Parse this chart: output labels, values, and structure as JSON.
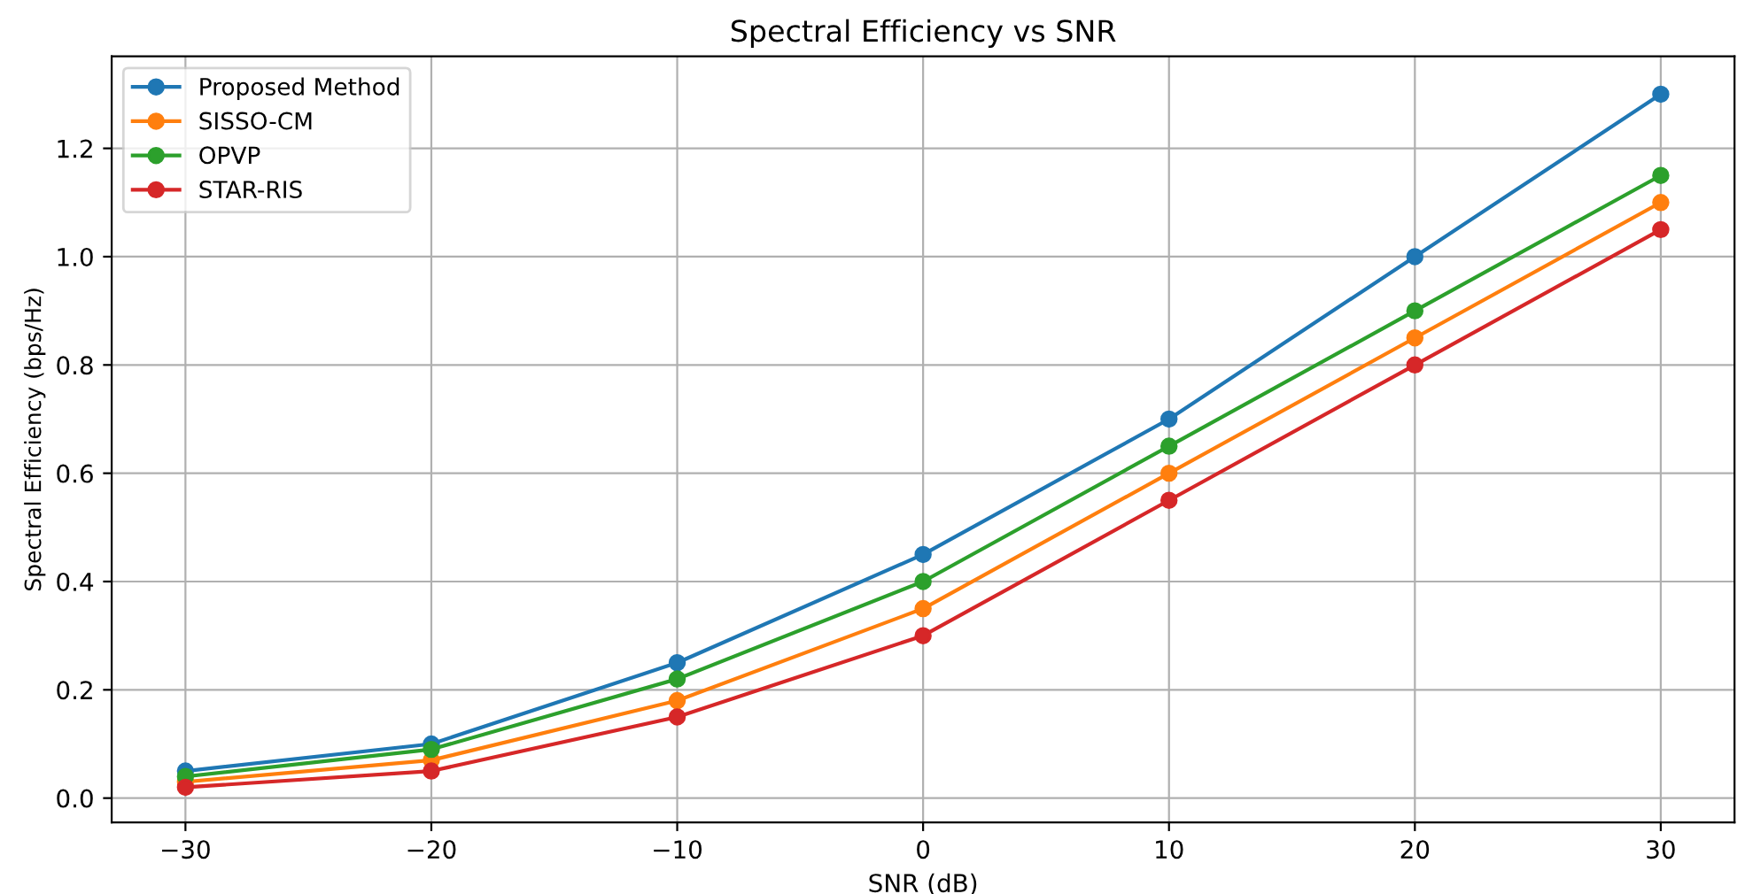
{
  "chart_data": {
    "type": "line",
    "title": "Spectral Efficiency vs SNR",
    "xlabel": "SNR (dB)",
    "ylabel": "Spectral Efficiency (bps/Hz)",
    "x": [
      -30,
      -20,
      -10,
      0,
      10,
      20,
      30
    ],
    "series": [
      {
        "name": "Proposed Method",
        "color": "#1f77b4",
        "values": [
          0.05,
          0.1,
          0.25,
          0.45,
          0.7,
          1.0,
          1.3
        ]
      },
      {
        "name": "SISSO-CM",
        "color": "#ff7f0e",
        "values": [
          0.03,
          0.07,
          0.18,
          0.35,
          0.6,
          0.85,
          1.1
        ]
      },
      {
        "name": "OPVP",
        "color": "#2ca02c",
        "values": [
          0.04,
          0.09,
          0.22,
          0.4,
          0.65,
          0.9,
          1.15
        ]
      },
      {
        "name": "STAR-RIS",
        "color": "#d62728",
        "values": [
          0.02,
          0.05,
          0.15,
          0.3,
          0.55,
          0.8,
          1.05
        ]
      }
    ],
    "xlim": [
      -33,
      33
    ],
    "ylim": [
      -0.045,
      1.37
    ],
    "xticks": [
      {
        "value": -30,
        "label": "−30"
      },
      {
        "value": -20,
        "label": "−20"
      },
      {
        "value": -10,
        "label": "−10"
      },
      0,
      10,
      20,
      30
    ],
    "yticks": [
      {
        "value": 0,
        "label": "0.0"
      },
      {
        "value": 0.2,
        "label": "0.2"
      },
      {
        "value": 0.4,
        "label": "0.4"
      },
      {
        "value": 0.6,
        "label": "0.6"
      },
      {
        "value": 0.8,
        "label": "0.8"
      },
      {
        "value": 1,
        "label": "1.0"
      },
      {
        "value": 1.2,
        "label": "1.2"
      }
    ],
    "grid": true,
    "legend": "top left",
    "marker": "circle",
    "line_style": "solid"
  }
}
